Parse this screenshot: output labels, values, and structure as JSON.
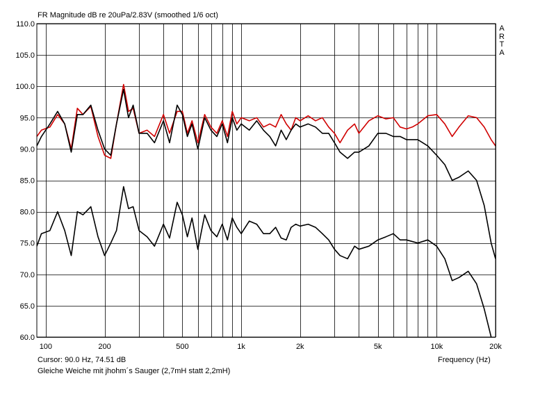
{
  "chart_data": {
    "type": "line",
    "title": "FR Magnitude dB re 20uPa/2.83V (smoothed 1/6 oct)",
    "xlabel": "Frequency (Hz)",
    "ylabel": "",
    "xscale": "log",
    "xlim": [
      90,
      20000
    ],
    "ylim": [
      60,
      110
    ],
    "grid": true,
    "watermark": [
      "A",
      "R",
      "T",
      "A"
    ],
    "x_tick_values": [
      100,
      200,
      500,
      1000,
      2000,
      5000,
      10000,
      20000
    ],
    "x_tick_labels": [
      "100",
      "200",
      "500",
      "1k",
      "2k",
      "5k",
      "10k",
      "20k"
    ],
    "x_minor_grid": [
      300,
      400,
      600,
      700,
      800,
      900,
      3000,
      4000,
      6000,
      7000,
      8000,
      9000
    ],
    "y_ticks": [
      60,
      65,
      70,
      75,
      80,
      85,
      90,
      95,
      100,
      105,
      110
    ],
    "y_tick_labels": [
      "60.0",
      "65.0",
      "70.0",
      "75.0",
      "80.0",
      "85.0",
      "90.0",
      "95.0",
      "100.0",
      "105.0",
      "110.0"
    ],
    "series": [
      {
        "color": "#d00000",
        "points": [
          [
            90,
            92
          ],
          [
            95,
            93
          ],
          [
            105,
            93.5
          ],
          [
            115,
            95.5
          ],
          [
            125,
            94
          ],
          [
            135,
            90
          ],
          [
            145,
            96.5
          ],
          [
            155,
            95.5
          ],
          [
            170,
            96.8
          ],
          [
            185,
            92
          ],
          [
            200,
            89
          ],
          [
            215,
            88.5
          ],
          [
            230,
            94
          ],
          [
            250,
            100.3
          ],
          [
            265,
            96
          ],
          [
            280,
            96.5
          ],
          [
            300,
            92.5
          ],
          [
            330,
            93
          ],
          [
            360,
            92
          ],
          [
            400,
            95.5
          ],
          [
            430,
            92.5
          ],
          [
            470,
            96
          ],
          [
            500,
            96
          ],
          [
            530,
            92.5
          ],
          [
            560,
            94.5
          ],
          [
            600,
            91
          ],
          [
            650,
            95.5
          ],
          [
            700,
            93.5
          ],
          [
            750,
            92.5
          ],
          [
            800,
            94.5
          ],
          [
            850,
            92
          ],
          [
            900,
            96
          ],
          [
            950,
            94
          ],
          [
            1000,
            95
          ],
          [
            1100,
            94.5
          ],
          [
            1200,
            95
          ],
          [
            1300,
            93.5
          ],
          [
            1400,
            94
          ],
          [
            1500,
            93.5
          ],
          [
            1600,
            95.5
          ],
          [
            1700,
            94
          ],
          [
            1800,
            93
          ],
          [
            1900,
            95
          ],
          [
            2000,
            94.5
          ],
          [
            2200,
            95.3
          ],
          [
            2400,
            94.5
          ],
          [
            2600,
            95
          ],
          [
            2800,
            93.5
          ],
          [
            3000,
            92.5
          ],
          [
            3200,
            91
          ],
          [
            3500,
            93
          ],
          [
            3800,
            94
          ],
          [
            4000,
            92.5
          ],
          [
            4500,
            94.5
          ],
          [
            5000,
            95.3
          ],
          [
            5500,
            94.8
          ],
          [
            6000,
            95
          ],
          [
            6500,
            93.5
          ],
          [
            7000,
            93.2
          ],
          [
            7500,
            93.5
          ],
          [
            8000,
            94
          ],
          [
            9000,
            95.3
          ],
          [
            10000,
            95.5
          ],
          [
            11000,
            94
          ],
          [
            12000,
            92
          ],
          [
            13000,
            93.5
          ],
          [
            14500,
            95.3
          ],
          [
            16000,
            95
          ],
          [
            17500,
            93.5
          ],
          [
            19000,
            91.5
          ],
          [
            20000,
            90.5
          ]
        ]
      },
      {
        "color": "#000000",
        "points": [
          [
            90,
            90.5
          ],
          [
            95,
            92
          ],
          [
            105,
            94
          ],
          [
            115,
            96
          ],
          [
            125,
            94
          ],
          [
            135,
            89.5
          ],
          [
            145,
            95.5
          ],
          [
            155,
            95.5
          ],
          [
            170,
            97
          ],
          [
            185,
            93
          ],
          [
            200,
            90
          ],
          [
            215,
            89
          ],
          [
            230,
            94
          ],
          [
            250,
            99.5
          ],
          [
            265,
            95
          ],
          [
            280,
            97
          ],
          [
            300,
            92.5
          ],
          [
            330,
            92.5
          ],
          [
            360,
            91
          ],
          [
            400,
            94.5
          ],
          [
            430,
            91
          ],
          [
            470,
            97
          ],
          [
            500,
            95.5
          ],
          [
            530,
            92
          ],
          [
            560,
            94
          ],
          [
            600,
            90
          ],
          [
            650,
            95
          ],
          [
            700,
            93
          ],
          [
            750,
            92
          ],
          [
            800,
            94
          ],
          [
            850,
            91
          ],
          [
            900,
            95
          ],
          [
            950,
            93
          ],
          [
            1000,
            94
          ],
          [
            1100,
            93
          ],
          [
            1200,
            94.5
          ],
          [
            1300,
            93
          ],
          [
            1400,
            92
          ],
          [
            1500,
            90.5
          ],
          [
            1600,
            93
          ],
          [
            1700,
            91.5
          ],
          [
            1800,
            93
          ],
          [
            1900,
            94
          ],
          [
            2000,
            93.5
          ],
          [
            2200,
            94
          ],
          [
            2400,
            93.5
          ],
          [
            2600,
            92.5
          ],
          [
            2800,
            92.5
          ],
          [
            3000,
            91
          ],
          [
            3200,
            89.5
          ],
          [
            3500,
            88.5
          ],
          [
            3800,
            89.5
          ],
          [
            4000,
            89.5
          ],
          [
            4500,
            90.5
          ],
          [
            5000,
            92.5
          ],
          [
            5500,
            92.5
          ],
          [
            6000,
            92
          ],
          [
            6500,
            92
          ],
          [
            7000,
            91.5
          ],
          [
            8000,
            91.5
          ],
          [
            9000,
            90.5
          ],
          [
            10000,
            89
          ],
          [
            11000,
            87.5
          ],
          [
            12000,
            85
          ],
          [
            13000,
            85.5
          ],
          [
            14500,
            86.5
          ],
          [
            16000,
            85
          ],
          [
            17500,
            81
          ],
          [
            19000,
            75
          ],
          [
            20000,
            72.5
          ]
        ]
      },
      {
        "color": "#000000",
        "points": [
          [
            90,
            74.5
          ],
          [
            95,
            76.5
          ],
          [
            105,
            77
          ],
          [
            115,
            80
          ],
          [
            125,
            77
          ],
          [
            135,
            73
          ],
          [
            145,
            80
          ],
          [
            155,
            79.5
          ],
          [
            170,
            80.8
          ],
          [
            185,
            76
          ],
          [
            200,
            73
          ],
          [
            215,
            75
          ],
          [
            230,
            77
          ],
          [
            250,
            84
          ],
          [
            265,
            80.5
          ],
          [
            280,
            80.8
          ],
          [
            300,
            77
          ],
          [
            330,
            76
          ],
          [
            360,
            74.5
          ],
          [
            400,
            78
          ],
          [
            430,
            75.8
          ],
          [
            470,
            81.5
          ],
          [
            500,
            79.5
          ],
          [
            530,
            76
          ],
          [
            560,
            79
          ],
          [
            600,
            74
          ],
          [
            650,
            79.5
          ],
          [
            700,
            77
          ],
          [
            750,
            76
          ],
          [
            800,
            78
          ],
          [
            850,
            75.5
          ],
          [
            900,
            79
          ],
          [
            950,
            77.5
          ],
          [
            1000,
            76.5
          ],
          [
            1100,
            78.5
          ],
          [
            1200,
            78
          ],
          [
            1300,
            76.5
          ],
          [
            1400,
            76.5
          ],
          [
            1500,
            77.5
          ],
          [
            1600,
            75.8
          ],
          [
            1700,
            75.5
          ],
          [
            1800,
            77.5
          ],
          [
            1900,
            78
          ],
          [
            2000,
            77.7
          ],
          [
            2200,
            78
          ],
          [
            2400,
            77.5
          ],
          [
            2600,
            76.5
          ],
          [
            2800,
            75.5
          ],
          [
            3000,
            74
          ],
          [
            3200,
            73
          ],
          [
            3500,
            72.5
          ],
          [
            3800,
            74.5
          ],
          [
            4000,
            74
          ],
          [
            4500,
            74.5
          ],
          [
            5000,
            75.5
          ],
          [
            5500,
            76
          ],
          [
            6000,
            76.5
          ],
          [
            6500,
            75.5
          ],
          [
            7000,
            75.5
          ],
          [
            8000,
            75
          ],
          [
            9000,
            75.5
          ],
          [
            10000,
            74.5
          ],
          [
            11000,
            72.5
          ],
          [
            12000,
            69
          ],
          [
            13000,
            69.5
          ],
          [
            14500,
            70.5
          ],
          [
            16000,
            68.5
          ],
          [
            17500,
            64.5
          ],
          [
            19000,
            60
          ],
          [
            20000,
            58.5
          ]
        ]
      }
    ],
    "annotations": {
      "cursor_readout": "Cursor: 90.0 Hz, 74.51 dB",
      "note": "Gleiche Weiche mit jhohm´s Sauger (2,7mH statt 2,2mH)"
    }
  }
}
